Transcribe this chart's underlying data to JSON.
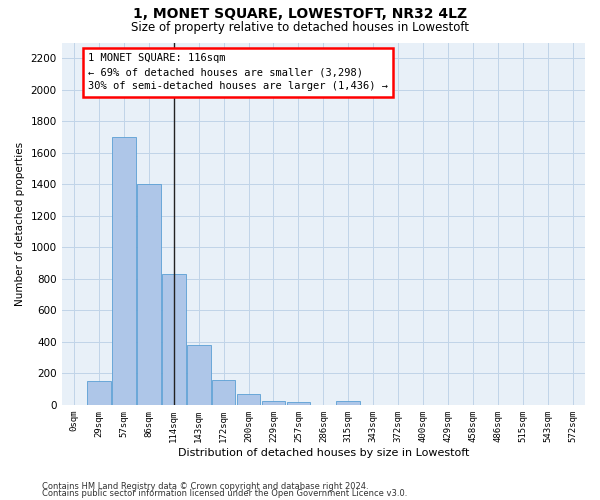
{
  "title": "1, MONET SQUARE, LOWESTOFT, NR32 4LZ",
  "subtitle": "Size of property relative to detached houses in Lowestoft",
  "xlabel": "Distribution of detached houses by size in Lowestoft",
  "ylabel": "Number of detached properties",
  "bar_color": "#aec6e8",
  "bar_edge_color": "#5a9fd4",
  "marker_color": "#222222",
  "grid_color": "#c0d4e8",
  "background_color": "#e8f0f8",
  "categories": [
    "0sqm",
    "29sqm",
    "57sqm",
    "86sqm",
    "114sqm",
    "143sqm",
    "172sqm",
    "200sqm",
    "229sqm",
    "257sqm",
    "286sqm",
    "315sqm",
    "343sqm",
    "372sqm",
    "400sqm",
    "429sqm",
    "458sqm",
    "486sqm",
    "515sqm",
    "543sqm",
    "572sqm"
  ],
  "values": [
    0,
    150,
    1700,
    1400,
    830,
    380,
    160,
    70,
    25,
    20,
    0,
    25,
    0,
    0,
    0,
    0,
    0,
    0,
    0,
    0,
    0
  ],
  "marker_index": 4,
  "marker_label": "1 MONET SQUARE: 116sqm",
  "annotation_line1": "← 69% of detached houses are smaller (3,298)",
  "annotation_line2": "30% of semi-detached houses are larger (1,436) →",
  "ylim": [
    0,
    2300
  ],
  "yticks": [
    0,
    200,
    400,
    600,
    800,
    1000,
    1200,
    1400,
    1600,
    1800,
    2000,
    2200
  ],
  "footnote1": "Contains HM Land Registry data © Crown copyright and database right 2024.",
  "footnote2": "Contains public sector information licensed under the Open Government Licence v3.0."
}
